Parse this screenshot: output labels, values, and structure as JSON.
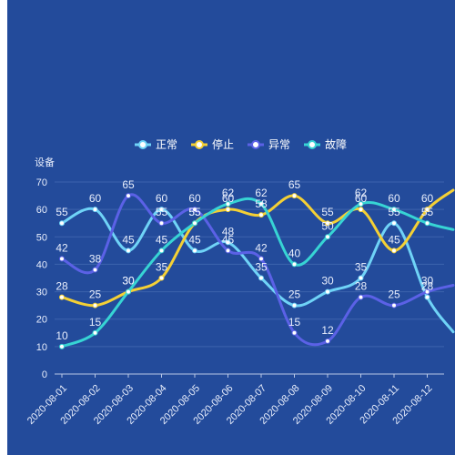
{
  "colors": {
    "panel_bg": "#234b9b",
    "axis": "#b8c7e6",
    "grid": "#3d63ad",
    "text": "#e8eefc"
  },
  "chart_data": {
    "type": "line",
    "smooth": true,
    "ylabel": "设备",
    "ylim": [
      0,
      70
    ],
    "yticks": [
      0,
      10,
      20,
      30,
      40,
      50,
      60,
      70
    ],
    "categories": [
      "2020-08-01",
      "2020-08-02",
      "2020-08-03",
      "2020-08-04",
      "2020-08-05",
      "2020-08-06",
      "2020-08-07",
      "2020-08-08",
      "2020-08-09",
      "2020-08-10",
      "2020-08-11",
      "2020-08-12"
    ],
    "legend_position": "top-center",
    "grid": "horizontal",
    "series": [
      {
        "name": "正常",
        "color": "#6fd3f7",
        "values": [
          55,
          60,
          45,
          60,
          45,
          48,
          35,
          25,
          30,
          35,
          55,
          28
        ]
      },
      {
        "name": "停止",
        "color": "#f4d035",
        "values": [
          28,
          25,
          30,
          35,
          55,
          60,
          58,
          65,
          55,
          60,
          45,
          60
        ]
      },
      {
        "name": "异常",
        "color": "#5b61e6",
        "values": [
          42,
          38,
          65,
          55,
          60,
          45,
          42,
          15,
          12,
          28,
          25,
          30
        ]
      },
      {
        "name": "故障",
        "color": "#37d4d4",
        "values": [
          10,
          15,
          30,
          45,
          55,
          62,
          62,
          40,
          50,
          62,
          60,
          55
        ]
      }
    ]
  }
}
